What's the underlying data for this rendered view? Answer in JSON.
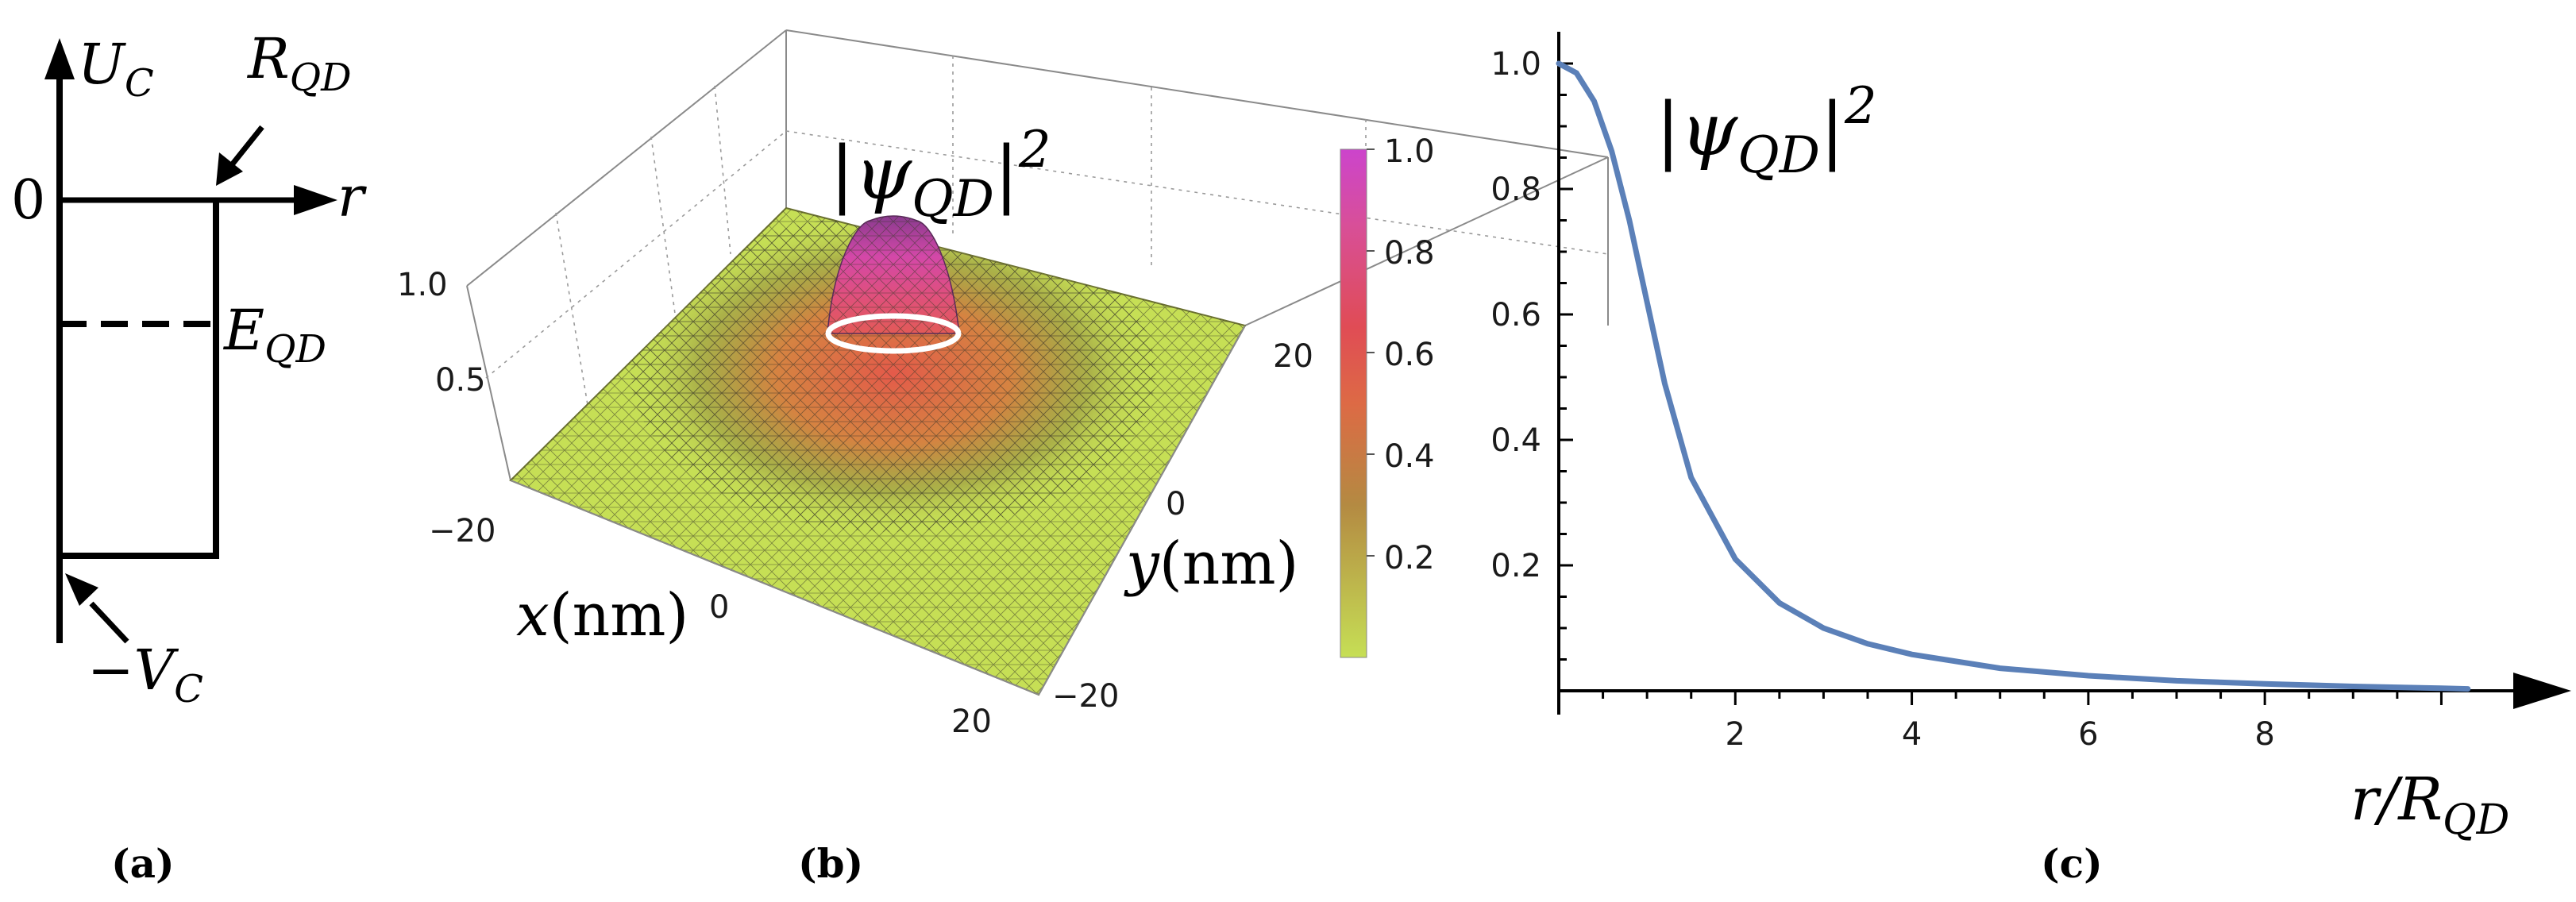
{
  "panel_labels": {
    "a": "(a)",
    "b": "(b)",
    "c": "(c)"
  },
  "panel_a": {
    "ylabel": "U",
    "ylabel_sub": "C",
    "xlabel": "r",
    "radius_label": "R",
    "radius_sub": "QD",
    "zero_label": "0",
    "energy_label": "E",
    "energy_sub": "QD",
    "depth_label": "−V",
    "depth_sub": "C"
  },
  "colors": {
    "curve": "#5b80b8",
    "axis": "#000000",
    "surface_low": "#c6df55",
    "surface_mid": "#e0604a",
    "surface_high": "#cc44c0"
  },
  "chart_data": [
    {
      "type": "surface3d",
      "title": "|ψ_QD|^2",
      "title_parts": {
        "base": "|ψ",
        "sub": "QD",
        "close": "|",
        "sup": "2"
      },
      "xlabel": "x(nm)",
      "xlabel_parts": {
        "var": "x",
        "unit": "(nm)"
      },
      "ylabel": "y(nm)",
      "ylabel_parts": {
        "var": "y",
        "unit": "(nm)"
      },
      "x_ticks": [
        "−20",
        "0",
        "20"
      ],
      "y_ticks": [
        "−20",
        "0",
        "20"
      ],
      "z_ticks": [
        "0.5",
        "1.0"
      ],
      "xlim": [
        -20,
        20
      ],
      "ylim": [
        -20,
        20
      ],
      "zlim": [
        0,
        1
      ],
      "colorbar": {
        "range": [
          0,
          1
        ],
        "ticks": [
          "0.2",
          "0.4",
          "0.6",
          "0.8",
          "1.0"
        ]
      }
    },
    {
      "type": "line",
      "title": "|ψ_QD|^2",
      "title_parts": {
        "base": "|ψ",
        "sub": "QD",
        "close": "|",
        "sup": "2"
      },
      "xlabel": "r/R_QD",
      "xlabel_parts": {
        "base": "r/R",
        "sub": "QD"
      },
      "ylabel": "",
      "xlim": [
        0,
        10.5
      ],
      "ylim": [
        0,
        1.0
      ],
      "x_ticks": [
        "2",
        "4",
        "6",
        "8"
      ],
      "y_ticks": [
        "0.2",
        "0.4",
        "0.6",
        "0.8",
        "1.0"
      ],
      "series": [
        {
          "name": "|ψ_QD|^2",
          "x": [
            0,
            0.2,
            0.4,
            0.6,
            0.8,
            1.0,
            1.2,
            1.5,
            2,
            2.5,
            3,
            3.5,
            4,
            5,
            6,
            7,
            8,
            9,
            10,
            10.3
          ],
          "y": [
            1.0,
            0.985,
            0.94,
            0.86,
            0.75,
            0.62,
            0.49,
            0.34,
            0.21,
            0.14,
            0.1,
            0.075,
            0.058,
            0.036,
            0.024,
            0.016,
            0.011,
            0.007,
            0.004,
            0.003
          ]
        }
      ]
    }
  ]
}
